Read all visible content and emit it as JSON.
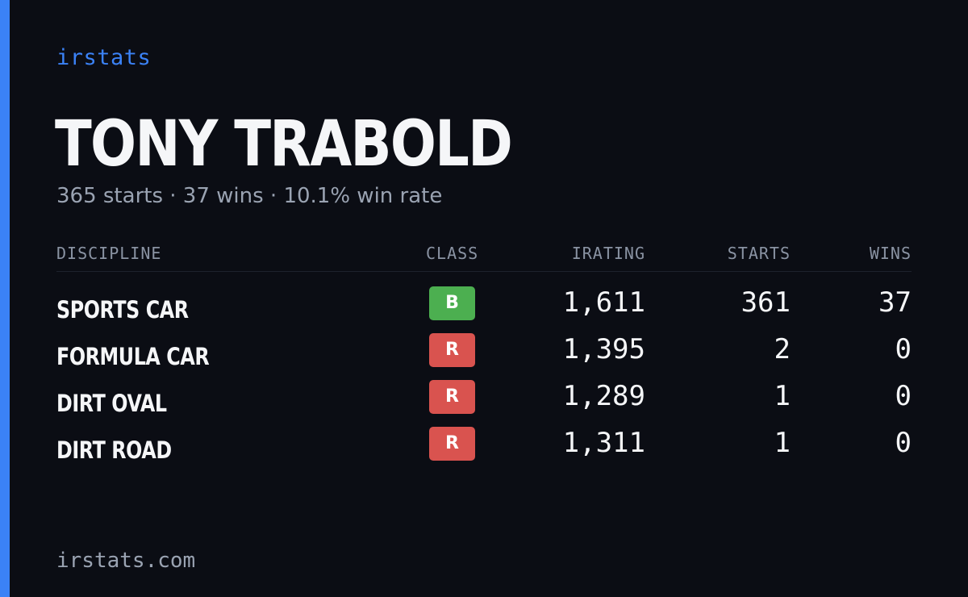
{
  "brand": "irstats",
  "driver": {
    "name": "TONY TRABOLD",
    "summary": "365 starts · 37 wins · 10.1% win rate"
  },
  "table": {
    "headers": {
      "discipline": "DISCIPLINE",
      "class": "CLASS",
      "irating": "IRATING",
      "starts": "STARTS",
      "wins": "WINS"
    },
    "rows": [
      {
        "discipline": "SPORTS CAR",
        "class": "B",
        "class_color": "#4caf50",
        "irating": "1,611",
        "starts": "361",
        "wins": "37"
      },
      {
        "discipline": "FORMULA CAR",
        "class": "R",
        "class_color": "#d9534f",
        "irating": "1,395",
        "starts": "2",
        "wins": "0"
      },
      {
        "discipline": "DIRT OVAL",
        "class": "R",
        "class_color": "#d9534f",
        "irating": "1,289",
        "starts": "1",
        "wins": "0"
      },
      {
        "discipline": "DIRT ROAD",
        "class": "R",
        "class_color": "#d9534f",
        "irating": "1,311",
        "starts": "1",
        "wins": "0"
      }
    ]
  },
  "footer": "irstats.com",
  "colors": {
    "accent": "#3b82f6",
    "background": "#0b0d14"
  }
}
